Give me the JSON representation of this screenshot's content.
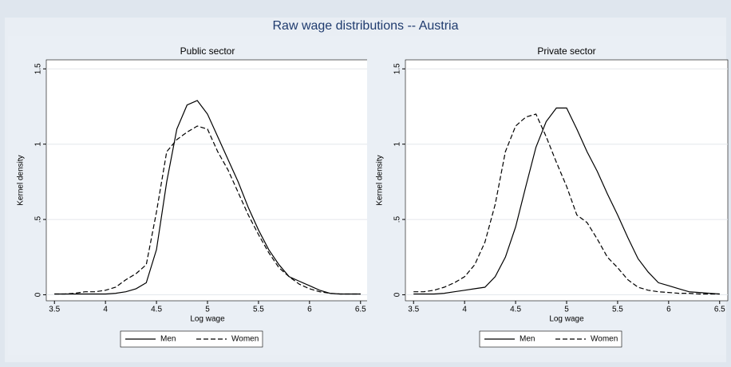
{
  "title": "Raw wage distributions -- Austria",
  "chart_data": [
    {
      "type": "line",
      "title": "Public sector",
      "x_label": "Log wage",
      "y_label": "Kernel density",
      "x": [
        3.5,
        3.6,
        3.7,
        3.8,
        3.9,
        4.0,
        4.1,
        4.2,
        4.3,
        4.4,
        4.5,
        4.6,
        4.7,
        4.8,
        4.9,
        5.0,
        5.1,
        5.2,
        5.3,
        5.4,
        5.5,
        5.6,
        5.7,
        5.8,
        5.9,
        6.0,
        6.1,
        6.2,
        6.3,
        6.4,
        6.5
      ],
      "series": [
        {
          "name": "Men",
          "color": "#000000",
          "dash": "solid",
          "values": [
            0.005,
            0.005,
            0.005,
            0.005,
            0.005,
            0.005,
            0.01,
            0.02,
            0.04,
            0.08,
            0.3,
            0.75,
            1.1,
            1.26,
            1.29,
            1.2,
            1.05,
            0.9,
            0.75,
            0.58,
            0.43,
            0.3,
            0.2,
            0.12,
            0.09,
            0.06,
            0.03,
            0.01,
            0.005,
            0.005,
            0.005
          ]
        },
        {
          "name": "Women",
          "color": "#000000",
          "dash": "dashed",
          "values": [
            0.005,
            0.005,
            0.01,
            0.02,
            0.02,
            0.03,
            0.05,
            0.1,
            0.14,
            0.2,
            0.55,
            0.95,
            1.03,
            1.08,
            1.12,
            1.1,
            0.95,
            0.83,
            0.68,
            0.53,
            0.4,
            0.28,
            0.18,
            0.12,
            0.07,
            0.04,
            0.02,
            0.01,
            0.005,
            0.005,
            0.005
          ]
        }
      ],
      "xlim": [
        3.42,
        6.58
      ],
      "xticks": [
        3.5,
        4,
        4.5,
        5,
        5.5,
        6,
        6.5
      ],
      "ylim": [
        -0.04,
        1.56
      ],
      "yticks": [
        0,
        {
          "value": 0.5,
          "label": ".5"
        },
        1,
        1.5
      ],
      "grid": true,
      "legend": "bottom"
    },
    {
      "type": "line",
      "title": "Private sector",
      "x_label": "Log wage",
      "y_label": "Kernel density",
      "x": [
        3.5,
        3.6,
        3.7,
        3.8,
        3.9,
        4.0,
        4.1,
        4.2,
        4.3,
        4.4,
        4.5,
        4.6,
        4.7,
        4.8,
        4.9,
        5.0,
        5.1,
        5.2,
        5.3,
        5.4,
        5.5,
        5.6,
        5.7,
        5.8,
        5.9,
        6.0,
        6.1,
        6.2,
        6.3,
        6.4,
        6.5
      ],
      "series": [
        {
          "name": "Men",
          "color": "#000000",
          "dash": "solid",
          "values": [
            0.005,
            0.005,
            0.005,
            0.01,
            0.02,
            0.03,
            0.04,
            0.05,
            0.12,
            0.25,
            0.45,
            0.72,
            0.98,
            1.15,
            1.24,
            1.24,
            1.1,
            0.95,
            0.82,
            0.67,
            0.53,
            0.38,
            0.24,
            0.15,
            0.08,
            0.06,
            0.04,
            0.02,
            0.015,
            0.01,
            0.005
          ]
        },
        {
          "name": "Women",
          "color": "#000000",
          "dash": "dashed",
          "values": [
            0.02,
            0.02,
            0.03,
            0.05,
            0.08,
            0.12,
            0.2,
            0.35,
            0.6,
            0.95,
            1.12,
            1.18,
            1.2,
            1.05,
            0.88,
            0.72,
            0.53,
            0.48,
            0.37,
            0.25,
            0.18,
            0.1,
            0.05,
            0.03,
            0.02,
            0.015,
            0.01,
            0.01,
            0.005,
            0.005,
            0.005
          ]
        }
      ],
      "xlim": [
        3.42,
        6.58
      ],
      "xticks": [
        3.5,
        4,
        4.5,
        5,
        5.5,
        6,
        6.5
      ],
      "ylim": [
        -0.04,
        1.56
      ],
      "yticks": [
        0,
        {
          "value": 0.5,
          "label": ".5"
        },
        1,
        1.5
      ],
      "grid": true,
      "legend": "bottom"
    }
  ]
}
